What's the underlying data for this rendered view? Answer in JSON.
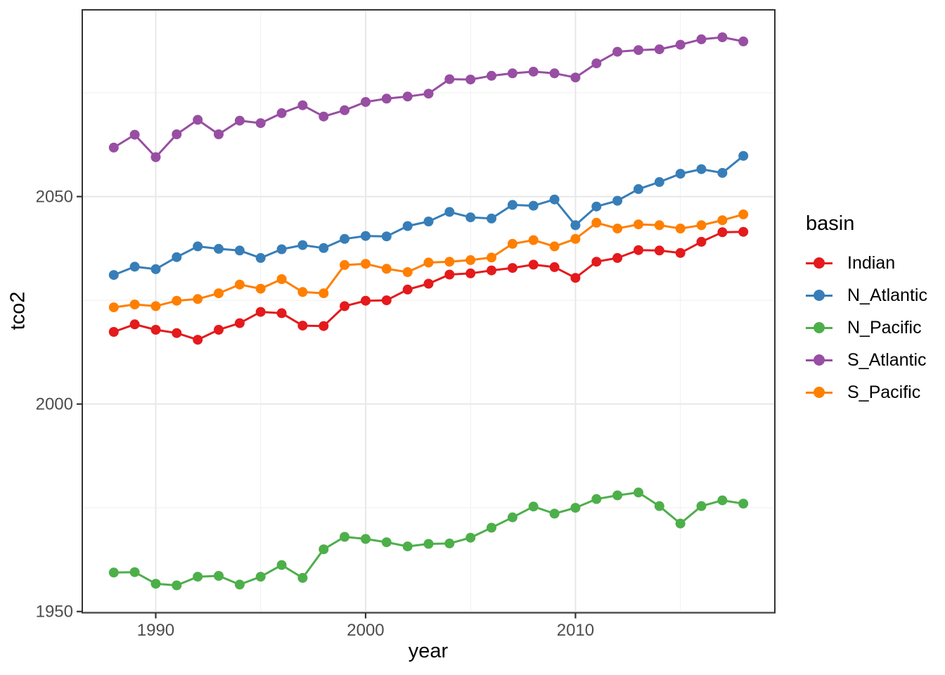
{
  "chart_data": {
    "type": "line",
    "title": "",
    "xlabel": "year",
    "ylabel": "tco2",
    "legend_title": "basin",
    "legend_position": "right",
    "grid": "major and minor light-gray gridlines on white panel with dark border (ggplot theme_bw)",
    "x": [
      1988,
      1989,
      1990,
      1991,
      1992,
      1993,
      1994,
      1995,
      1996,
      1997,
      1998,
      1999,
      2000,
      2001,
      2002,
      2003,
      2004,
      2005,
      2006,
      2007,
      2008,
      2009,
      2010,
      2011,
      2012,
      2013,
      2014,
      2015,
      2016,
      2017,
      2018
    ],
    "series": [
      {
        "name": "Indian",
        "color": "#E41A1C",
        "values": [
          2017.4,
          2019.2,
          2017.9,
          2017.1,
          2015.5,
          2017.9,
          2019.5,
          2022.2,
          2021.9,
          2018.9,
          2018.8,
          2023.6,
          2024.9,
          2025.0,
          2027.6,
          2029.0,
          2031.2,
          2031.5,
          2032.2,
          2032.8,
          2033.6,
          2033.0,
          2030.4,
          2034.3,
          2035.2,
          2037.1,
          2037.0,
          2036.4,
          2039.1,
          2041.4,
          2041.5
        ]
      },
      {
        "name": "N_Atlantic",
        "color": "#377EB8",
        "values": [
          2031.1,
          2033.1,
          2032.5,
          2035.4,
          2038.0,
          2037.4,
          2037.0,
          2035.2,
          2037.3,
          2038.3,
          2037.6,
          2039.8,
          2040.5,
          2040.4,
          2042.9,
          2044.0,
          2046.3,
          2045.0,
          2044.7,
          2048.0,
          2047.8,
          2049.3,
          2043.1,
          2047.6,
          2049.0,
          2051.8,
          2053.5,
          2055.5,
          2056.6,
          2055.7,
          2059.8
        ]
      },
      {
        "name": "N_Pacific",
        "color": "#4DAF4A",
        "values": [
          1959.4,
          1959.5,
          1956.7,
          1956.3,
          1958.4,
          1958.6,
          1956.5,
          1958.4,
          1961.2,
          1958.1,
          1965.0,
          1968.0,
          1967.5,
          1966.7,
          1965.7,
          1966.3,
          1966.4,
          1967.8,
          1970.2,
          1972.7,
          1975.3,
          1973.6,
          1975.0,
          1977.1,
          1978.0,
          1978.7,
          1975.4,
          1971.2,
          1975.4,
          1976.8,
          1976.0
        ]
      },
      {
        "name": "S_Atlantic",
        "color": "#984EA3",
        "values": [
          2061.8,
          2064.9,
          2059.5,
          2065.0,
          2068.5,
          2065.0,
          2068.3,
          2067.7,
          2070.1,
          2072.0,
          2069.3,
          2070.8,
          2072.8,
          2073.6,
          2074.1,
          2074.8,
          2078.3,
          2078.2,
          2079.1,
          2079.7,
          2080.1,
          2079.7,
          2078.7,
          2082.1,
          2084.9,
          2085.3,
          2085.5,
          2086.6,
          2087.9,
          2088.4,
          2087.4
        ]
      },
      {
        "name": "S_Pacific",
        "color": "#FF7F00",
        "values": [
          2023.3,
          2024.0,
          2023.6,
          2024.9,
          2025.3,
          2026.7,
          2028.8,
          2027.8,
          2030.1,
          2027.0,
          2026.7,
          2033.5,
          2033.8,
          2032.6,
          2031.8,
          2034.1,
          2034.3,
          2034.7,
          2035.3,
          2038.6,
          2039.5,
          2038.0,
          2039.8,
          2043.7,
          2042.3,
          2043.3,
          2043.1,
          2042.3,
          2043.1,
          2044.3,
          2045.7
        ]
      }
    ],
    "x_ticks": {
      "labels": [
        "1990",
        "2000",
        "2010"
      ],
      "values": [
        1990,
        2000,
        2010
      ],
      "minor": [
        1995,
        2005,
        2015
      ]
    },
    "y_ticks": {
      "labels": [
        "1950",
        "2000",
        "2050"
      ],
      "values": [
        1950,
        2000,
        2050
      ],
      "minor": [
        1975,
        2025,
        2075
      ]
    },
    "x_range": [
      1986.5,
      2019.5
    ],
    "y_range": [
      1949.7,
      2095.0
    ],
    "colors": {
      "panel_background": "#FFFFFF",
      "panel_border": "#333333",
      "grid_major": "#E8E8E8",
      "grid_minor": "#F2F2F2",
      "tick_mark": "#333333",
      "tick_text": "#4D4D4D",
      "title_text": "#000000"
    }
  }
}
